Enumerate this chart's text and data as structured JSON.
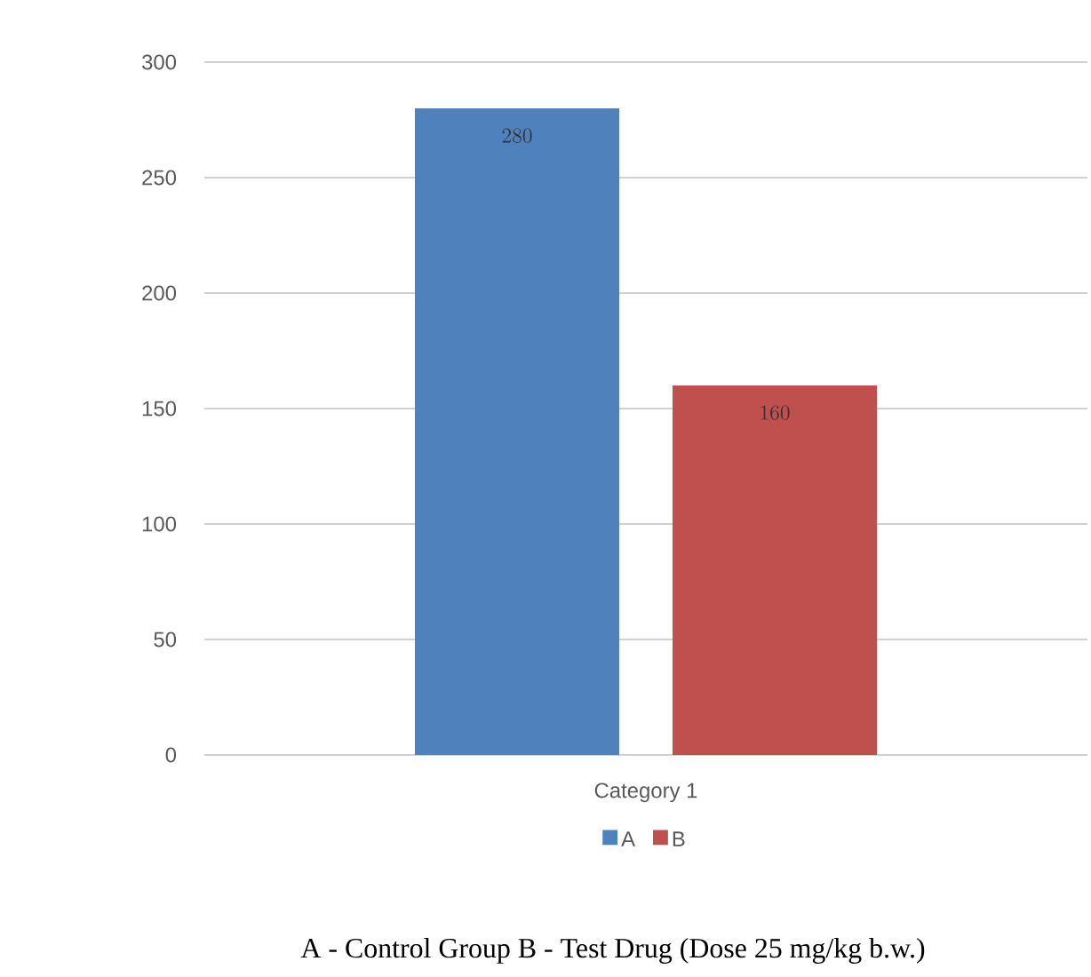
{
  "chart_data": {
    "type": "bar",
    "categories": [
      "Category 1"
    ],
    "series": [
      {
        "name": "A",
        "color": "#4f81bd",
        "values": [
          280
        ]
      },
      {
        "name": "B",
        "color": "#c0504d",
        "values": [
          160
        ]
      }
    ],
    "ylim": [
      0,
      300
    ],
    "yticks": [
      0,
      50,
      100,
      150,
      200,
      250,
      300
    ],
    "grid": "y",
    "legend": "bottom",
    "data_labels": true,
    "annotations": [
      "A - Control Group B - Test Drug (Dose 25 mg/kg b.w.)"
    ]
  }
}
